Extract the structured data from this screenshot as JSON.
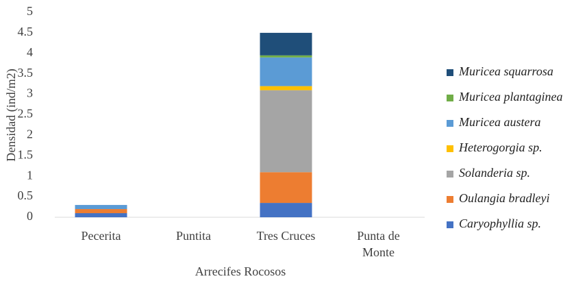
{
  "chart_data": {
    "type": "stacked_bar",
    "x_label": "Arrecifes Rocosos",
    "y_label": "Densidad (ind/m2)",
    "categories": [
      "Pecerita",
      "Puntita",
      "Tres Cruces",
      "Punta de Monte"
    ],
    "series": [
      {
        "name": "Caryophyllia sp.",
        "color": "#4472c4",
        "values": [
          0.1,
          0,
          0.35,
          0
        ]
      },
      {
        "name": "Oulangia bradleyi",
        "color": "#ed7d31",
        "values": [
          0.1,
          0,
          0.75,
          0
        ]
      },
      {
        "name": "Solanderia sp.",
        "color": "#a5a5a5",
        "values": [
          0,
          0,
          2.0,
          0
        ]
      },
      {
        "name": "Heterogorgia sp.",
        "color": "#ffc000",
        "values": [
          0,
          0,
          0.1,
          0
        ]
      },
      {
        "name": "Muricea austera",
        "color": "#5b9bd5",
        "values": [
          0.1,
          0,
          0.7,
          0
        ]
      },
      {
        "name": "Muricea plantaginea",
        "color": "#70ad47",
        "values": [
          0,
          0,
          0.05,
          0
        ]
      },
      {
        "name": "Muricea squarrosa",
        "color": "#1f4e79",
        "values": [
          0,
          0,
          0.55,
          0
        ]
      }
    ],
    "ylim": [
      0,
      5
    ],
    "yticks": [
      0,
      0.5,
      1,
      1.5,
      2,
      2.5,
      3,
      3.5,
      4,
      4.5,
      5
    ],
    "grid": false,
    "legend": "right"
  }
}
